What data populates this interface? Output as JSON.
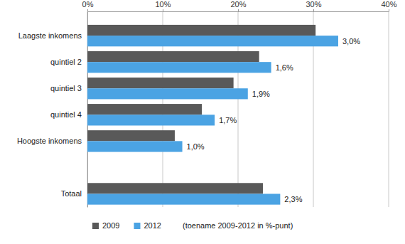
{
  "chart_data": {
    "type": "bar",
    "orientation": "horizontal",
    "categories": [
      "Laagste inkomens",
      "quintiel 2",
      "quintiel 3",
      "quintiel 4",
      "Hoogste inkomens",
      null,
      "Totaal"
    ],
    "series": [
      {
        "name": "2009",
        "color": "#595959",
        "values": [
          30.3,
          22.8,
          19.4,
          15.2,
          11.6,
          null,
          23.3
        ]
      },
      {
        "name": "2012",
        "color": "#4ba3e3",
        "values": [
          33.3,
          24.4,
          21.3,
          16.9,
          12.6,
          null,
          25.6
        ],
        "increase": [
          3.0,
          1.6,
          1.9,
          1.7,
          1.0,
          null,
          2.3
        ],
        "increase_labels": [
          "3,0%",
          "1,6%",
          "1,9%",
          "1,7%",
          "1,0%",
          null,
          "2,3%"
        ]
      }
    ],
    "xlim": [
      0,
      40
    ],
    "xticks": [
      {
        "value": 0,
        "label": "0%"
      },
      {
        "value": 10,
        "label": "10%"
      },
      {
        "value": 20,
        "label": "20%"
      },
      {
        "value": 30,
        "label": "30%"
      },
      {
        "value": 40,
        "label": "40%"
      }
    ],
    "grid": true,
    "legend": "bottom",
    "annotations": [
      "(toename 2009-2012 in %-punt)"
    ]
  }
}
